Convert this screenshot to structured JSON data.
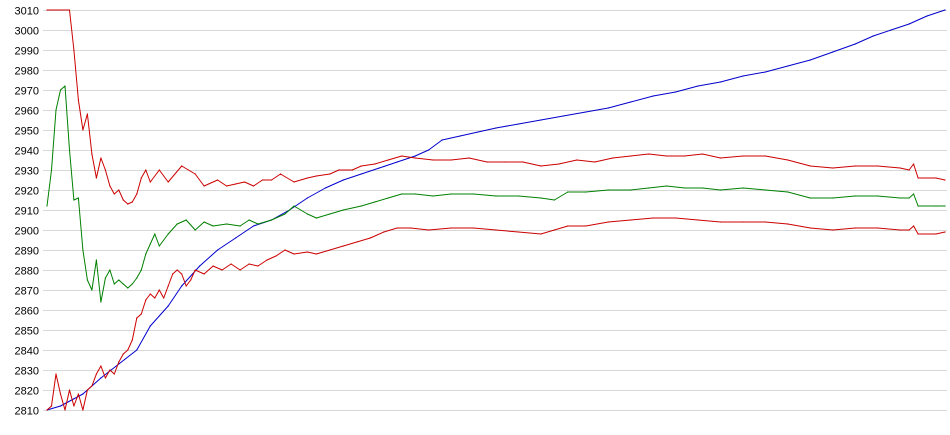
{
  "chart_data": {
    "type": "line",
    "title": "",
    "xlabel": "",
    "ylabel": "",
    "ylim": [
      2810,
      3010
    ],
    "yticks": [
      2810,
      2820,
      2830,
      2840,
      2850,
      2860,
      2870,
      2880,
      2890,
      2900,
      2910,
      2920,
      2930,
      2940,
      2950,
      2960,
      2970,
      2980,
      2990,
      3000,
      3010
    ],
    "ytick_labels": [
      "2810",
      "2820",
      "2830",
      "2840",
      "2850",
      "2860",
      "2870",
      "2880",
      "2890",
      "2900",
      "2910",
      "2920",
      "2930",
      "2940",
      "2950",
      "2960",
      "2970",
      "2980",
      "2990",
      "3000",
      "3010"
    ],
    "grid": true,
    "legend": "none",
    "x_points": 200,
    "series": [
      {
        "color": "#0000cc",
        "points": [
          [
            0,
            2810
          ],
          [
            3,
            2812
          ],
          [
            8,
            2818
          ],
          [
            12,
            2826
          ],
          [
            16,
            2833
          ],
          [
            20,
            2840
          ],
          [
            23,
            2852
          ],
          [
            27,
            2862
          ],
          [
            30,
            2872
          ],
          [
            34,
            2882
          ],
          [
            38,
            2890
          ],
          [
            42,
            2896
          ],
          [
            46,
            2902
          ],
          [
            50,
            2905
          ],
          [
            54,
            2910
          ],
          [
            58,
            2916
          ],
          [
            62,
            2921
          ],
          [
            66,
            2925
          ],
          [
            70,
            2928
          ],
          [
            74,
            2931
          ],
          [
            78,
            2934
          ],
          [
            82,
            2937
          ],
          [
            85,
            2940
          ],
          [
            88,
            2945
          ],
          [
            92,
            2947
          ],
          [
            96,
            2949
          ],
          [
            100,
            2951
          ],
          [
            105,
            2953
          ],
          [
            110,
            2955
          ],
          [
            115,
            2957
          ],
          [
            120,
            2959
          ],
          [
            125,
            2961
          ],
          [
            130,
            2964
          ],
          [
            135,
            2967
          ],
          [
            140,
            2969
          ],
          [
            145,
            2972
          ],
          [
            150,
            2974
          ],
          [
            155,
            2977
          ],
          [
            160,
            2979
          ],
          [
            165,
            2982
          ],
          [
            170,
            2985
          ],
          [
            175,
            2989
          ],
          [
            180,
            2993
          ],
          [
            184,
            2997
          ],
          [
            188,
            3000
          ],
          [
            192,
            3003
          ],
          [
            196,
            3007
          ],
          [
            200,
            3010
          ]
        ]
      },
      {
        "color": "#cc0000",
        "points": [
          [
            0,
            3010
          ],
          [
            5,
            3010
          ],
          [
            6,
            2990
          ],
          [
            7,
            2965
          ],
          [
            8,
            2950
          ],
          [
            9,
            2958
          ],
          [
            10,
            2938
          ],
          [
            11,
            2926
          ],
          [
            12,
            2936
          ],
          [
            13,
            2930
          ],
          [
            14,
            2922
          ],
          [
            15,
            2918
          ],
          [
            16,
            2920
          ],
          [
            17,
            2915
          ],
          [
            18,
            2913
          ],
          [
            19,
            2914
          ],
          [
            20,
            2918
          ],
          [
            21,
            2926
          ],
          [
            22,
            2930
          ],
          [
            23,
            2924
          ],
          [
            25,
            2930
          ],
          [
            27,
            2924
          ],
          [
            30,
            2932
          ],
          [
            33,
            2928
          ],
          [
            35,
            2922
          ],
          [
            38,
            2925
          ],
          [
            40,
            2922
          ],
          [
            42,
            2923
          ],
          [
            44,
            2924
          ],
          [
            46,
            2922
          ],
          [
            48,
            2925
          ],
          [
            50,
            2925
          ],
          [
            52,
            2928
          ],
          [
            55,
            2924
          ],
          [
            58,
            2926
          ],
          [
            60,
            2927
          ],
          [
            63,
            2928
          ],
          [
            65,
            2930
          ],
          [
            68,
            2930
          ],
          [
            70,
            2932
          ],
          [
            73,
            2933
          ],
          [
            76,
            2935
          ],
          [
            79,
            2937
          ],
          [
            82,
            2936
          ],
          [
            86,
            2935
          ],
          [
            90,
            2935
          ],
          [
            94,
            2936
          ],
          [
            98,
            2934
          ],
          [
            102,
            2934
          ],
          [
            106,
            2934
          ],
          [
            110,
            2932
          ],
          [
            114,
            2933
          ],
          [
            118,
            2935
          ],
          [
            122,
            2934
          ],
          [
            126,
            2936
          ],
          [
            130,
            2937
          ],
          [
            134,
            2938
          ],
          [
            138,
            2937
          ],
          [
            142,
            2937
          ],
          [
            146,
            2938
          ],
          [
            150,
            2936
          ],
          [
            155,
            2937
          ],
          [
            160,
            2937
          ],
          [
            165,
            2935
          ],
          [
            170,
            2932
          ],
          [
            175,
            2931
          ],
          [
            180,
            2932
          ],
          [
            185,
            2932
          ],
          [
            190,
            2931
          ],
          [
            192,
            2930
          ],
          [
            193,
            2933
          ],
          [
            194,
            2926
          ],
          [
            198,
            2926
          ],
          [
            200,
            2925
          ]
        ]
      },
      {
        "color": "#008000",
        "points": [
          [
            0,
            2912
          ],
          [
            1,
            2930
          ],
          [
            2,
            2960
          ],
          [
            3,
            2970
          ],
          [
            4,
            2972
          ],
          [
            5,
            2940
          ],
          [
            6,
            2915
          ],
          [
            7,
            2916
          ],
          [
            8,
            2890
          ],
          [
            9,
            2875
          ],
          [
            10,
            2870
          ],
          [
            11,
            2885
          ],
          [
            12,
            2864
          ],
          [
            13,
            2876
          ],
          [
            14,
            2880
          ],
          [
            15,
            2873
          ],
          [
            16,
            2875
          ],
          [
            17,
            2873
          ],
          [
            18,
            2871
          ],
          [
            19,
            2873
          ],
          [
            20,
            2876
          ],
          [
            21,
            2880
          ],
          [
            22,
            2888
          ],
          [
            23,
            2893
          ],
          [
            24,
            2898
          ],
          [
            25,
            2892
          ],
          [
            27,
            2898
          ],
          [
            29,
            2903
          ],
          [
            31,
            2905
          ],
          [
            33,
            2900
          ],
          [
            35,
            2904
          ],
          [
            37,
            2902
          ],
          [
            40,
            2903
          ],
          [
            43,
            2902
          ],
          [
            45,
            2905
          ],
          [
            47,
            2903
          ],
          [
            50,
            2905
          ],
          [
            53,
            2908
          ],
          [
            55,
            2912
          ],
          [
            58,
            2908
          ],
          [
            60,
            2906
          ],
          [
            63,
            2908
          ],
          [
            66,
            2910
          ],
          [
            70,
            2912
          ],
          [
            73,
            2914
          ],
          [
            76,
            2916
          ],
          [
            79,
            2918
          ],
          [
            82,
            2918
          ],
          [
            86,
            2917
          ],
          [
            90,
            2918
          ],
          [
            95,
            2918
          ],
          [
            100,
            2917
          ],
          [
            105,
            2917
          ],
          [
            110,
            2916
          ],
          [
            113,
            2915
          ],
          [
            116,
            2919
          ],
          [
            120,
            2919
          ],
          [
            125,
            2920
          ],
          [
            130,
            2920
          ],
          [
            134,
            2921
          ],
          [
            138,
            2922
          ],
          [
            142,
            2921
          ],
          [
            146,
            2921
          ],
          [
            150,
            2920
          ],
          [
            155,
            2921
          ],
          [
            160,
            2920
          ],
          [
            165,
            2919
          ],
          [
            170,
            2916
          ],
          [
            175,
            2916
          ],
          [
            180,
            2917
          ],
          [
            185,
            2917
          ],
          [
            190,
            2916
          ],
          [
            192,
            2916
          ],
          [
            193,
            2918
          ],
          [
            194,
            2912
          ],
          [
            198,
            2912
          ],
          [
            200,
            2912
          ]
        ]
      },
      {
        "color": "#cc0000",
        "points": [
          [
            0,
            2810
          ],
          [
            1,
            2812
          ],
          [
            2,
            2828
          ],
          [
            3,
            2818
          ],
          [
            4,
            2810
          ],
          [
            5,
            2820
          ],
          [
            6,
            2812
          ],
          [
            7,
            2818
          ],
          [
            8,
            2810
          ],
          [
            9,
            2820
          ],
          [
            10,
            2822
          ],
          [
            11,
            2828
          ],
          [
            12,
            2832
          ],
          [
            13,
            2826
          ],
          [
            14,
            2830
          ],
          [
            15,
            2828
          ],
          [
            16,
            2834
          ],
          [
            17,
            2838
          ],
          [
            18,
            2840
          ],
          [
            19,
            2845
          ],
          [
            20,
            2856
          ],
          [
            21,
            2858
          ],
          [
            22,
            2865
          ],
          [
            23,
            2868
          ],
          [
            24,
            2866
          ],
          [
            25,
            2870
          ],
          [
            26,
            2866
          ],
          [
            27,
            2872
          ],
          [
            28,
            2878
          ],
          [
            29,
            2880
          ],
          [
            30,
            2878
          ],
          [
            31,
            2872
          ],
          [
            32,
            2875
          ],
          [
            33,
            2880
          ],
          [
            35,
            2878
          ],
          [
            37,
            2882
          ],
          [
            39,
            2880
          ],
          [
            41,
            2883
          ],
          [
            43,
            2880
          ],
          [
            45,
            2883
          ],
          [
            47,
            2882
          ],
          [
            49,
            2885
          ],
          [
            51,
            2887
          ],
          [
            53,
            2890
          ],
          [
            55,
            2888
          ],
          [
            58,
            2889
          ],
          [
            60,
            2888
          ],
          [
            63,
            2890
          ],
          [
            66,
            2892
          ],
          [
            69,
            2894
          ],
          [
            72,
            2896
          ],
          [
            75,
            2899
          ],
          [
            78,
            2901
          ],
          [
            81,
            2901
          ],
          [
            85,
            2900
          ],
          [
            90,
            2901
          ],
          [
            95,
            2901
          ],
          [
            100,
            2900
          ],
          [
            105,
            2899
          ],
          [
            110,
            2898
          ],
          [
            113,
            2900
          ],
          [
            116,
            2902
          ],
          [
            120,
            2902
          ],
          [
            125,
            2904
          ],
          [
            130,
            2905
          ],
          [
            135,
            2906
          ],
          [
            140,
            2906
          ],
          [
            145,
            2905
          ],
          [
            150,
            2904
          ],
          [
            155,
            2904
          ],
          [
            160,
            2904
          ],
          [
            165,
            2903
          ],
          [
            170,
            2901
          ],
          [
            175,
            2900
          ],
          [
            180,
            2901
          ],
          [
            185,
            2901
          ],
          [
            190,
            2900
          ],
          [
            192,
            2900
          ],
          [
            193,
            2902
          ],
          [
            194,
            2898
          ],
          [
            198,
            2898
          ],
          [
            200,
            2899
          ]
        ]
      }
    ]
  }
}
